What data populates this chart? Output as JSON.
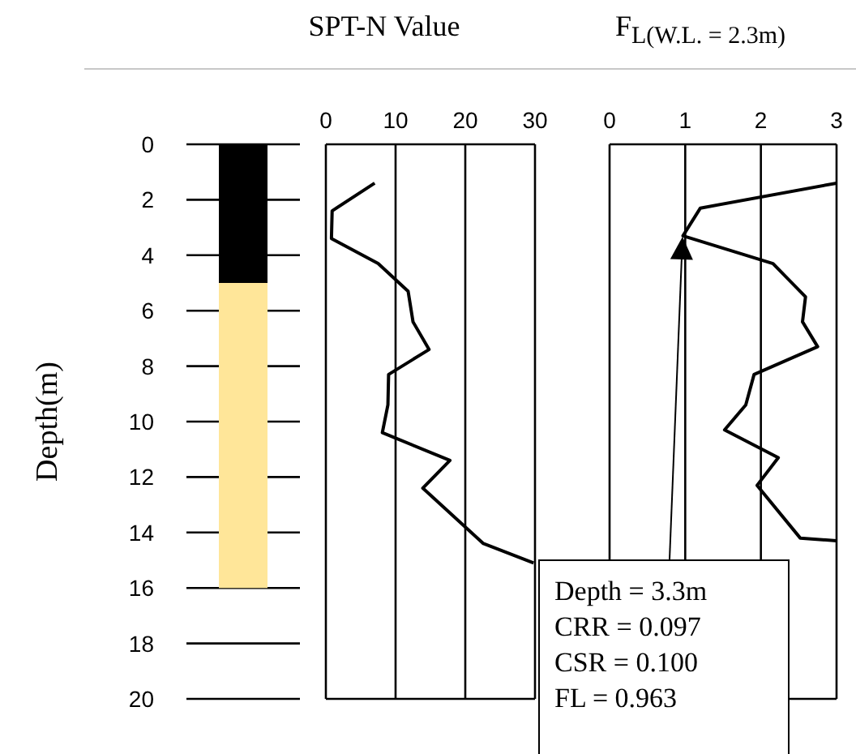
{
  "chart_data": [
    {
      "type": "bar",
      "ylabel": "Depth(m)",
      "categories": [
        null
      ],
      "series": [
        {
          "color": "#000000",
          "values": [
            5
          ]
        },
        {
          "color": "#ffe699",
          "values": [
            11
          ]
        }
      ],
      "stacked": true,
      "ylim": [
        20,
        0
      ],
      "yticks": [
        0,
        2,
        4,
        6,
        8,
        10,
        12,
        14,
        16,
        18,
        20
      ],
      "grid": "y",
      "tick_labels": "y"
    },
    {
      "type": "line",
      "title": "SPT-N Value",
      "series": [
        {
          "color": "#000000",
          "x": [
            7.0,
            0.9,
            0.8,
            7.5,
            11.8,
            12.5,
            14.8,
            9.0,
            8.9,
            8.1,
            17.8,
            13.9,
            22.6,
            29.8
          ],
          "values": [
            1.4,
            2.4,
            3.4,
            4.3,
            5.3,
            6.4,
            7.4,
            8.3,
            9.4,
            10.4,
            11.4,
            12.4,
            14.4,
            15.1
          ]
        }
      ],
      "xlim": [
        0,
        30
      ],
      "xticks": [
        0,
        10,
        20,
        30
      ],
      "ylim": [
        20,
        0
      ],
      "yticks": [
        0,
        2,
        4,
        6,
        8,
        10,
        12,
        14,
        16,
        18,
        20
      ],
      "grid": true,
      "tick_labels": "x"
    },
    {
      "type": "line",
      "title": "F$_{L(W.L. = 2.3m)}$",
      "series": [
        {
          "color": "#000000",
          "x": [
            3.0,
            1.2,
            0.97,
            2.16,
            2.59,
            2.55,
            2.75,
            1.91,
            1.8,
            1.52,
            2.23,
            1.95,
            2.52,
            3.0
          ],
          "values": [
            1.4,
            2.3,
            3.3,
            4.3,
            5.5,
            6.4,
            7.3,
            8.3,
            9.4,
            10.3,
            11.3,
            12.3,
            14.2,
            14.3
          ]
        }
      ],
      "xlim": [
        0,
        3
      ],
      "xticks": [
        0,
        1,
        2,
        3
      ],
      "ylim": [
        20,
        0
      ],
      "yticks": [
        0,
        2,
        4,
        6,
        8,
        10,
        12,
        14,
        16,
        18,
        20
      ],
      "grid": true,
      "tick_labels": "x",
      "annotations": [
        "Depth = 3.3m\nCRR = 0.097\nCSR = 0.100\nFL = 0.963"
      ]
    }
  ]
}
